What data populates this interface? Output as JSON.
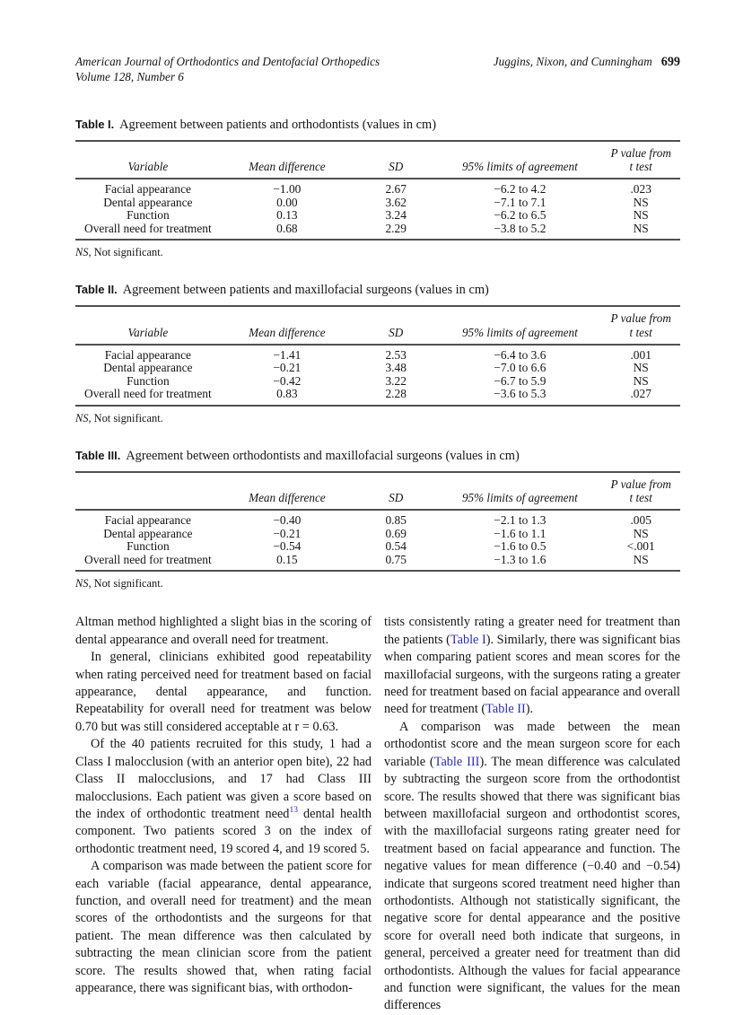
{
  "colors": {
    "link_blue": "#2b2bb0",
    "rule_gray": "#4f4f4f",
    "text_black": "#151515"
  },
  "header": {
    "journal": "American Journal of Orthodontics and Dentofacial Orthopedics",
    "volume": "Volume 128, Number 6",
    "authors": "Juggins, Nixon, and Cunningham",
    "page_number": "699"
  },
  "tables": [
    {
      "label": "Table I.",
      "caption": "Agreement between patients and orthodontists (values in cm)",
      "headers": {
        "variable": "Variable",
        "mean": "Mean difference",
        "sd": "SD",
        "limits": "95% limits of agreement",
        "p_line1": "P value from",
        "p_line2": "t test"
      },
      "rows": [
        [
          "Facial appearance",
          "−1.00",
          "2.67",
          "−6.2 to 4.2",
          ".023"
        ],
        [
          "Dental appearance",
          "0.00",
          "3.62",
          "−7.1 to 7.1",
          "NS"
        ],
        [
          "Function",
          "0.13",
          "3.24",
          "−6.2 to 6.5",
          "NS"
        ],
        [
          "Overall need for treatment",
          "0.68",
          "2.29",
          "−3.8 to 5.2",
          "NS"
        ]
      ],
      "footnote_abbr": "NS",
      "footnote_rest": ", Not significant."
    },
    {
      "label": "Table II.",
      "caption": "Agreement between patients and maxillofacial surgeons (values in cm)",
      "headers": {
        "variable": "Variable",
        "mean": "Mean difference",
        "sd": "SD",
        "limits": "95% limits of agreement",
        "p_line1": "P value from",
        "p_line2": "t test"
      },
      "rows": [
        [
          "Facial appearance",
          "−1.41",
          "2.53",
          "−6.4 to 3.6",
          ".001"
        ],
        [
          "Dental appearance",
          "−0.21",
          "3.48",
          "−7.0 to 6.6",
          "NS"
        ],
        [
          "Function",
          "−0.42",
          "3.22",
          "−6.7 to 5.9",
          "NS"
        ],
        [
          "Overall need for treatment",
          "0.83",
          "2.28",
          "−3.6 to 5.3",
          ".027"
        ]
      ],
      "footnote_abbr": "NS",
      "footnote_rest": ", Not significant."
    },
    {
      "label": "Table III.",
      "caption": "Agreement between orthodontists and maxillofacial surgeons (values in cm)",
      "headers": {
        "variable": "",
        "mean": "Mean difference",
        "sd": "SD",
        "limits": "95% limits of agreement",
        "p_line1": "P value from",
        "p_line2": "t test"
      },
      "rows": [
        [
          "Facial appearance",
          "−0.40",
          "0.85",
          "−2.1 to 1.3",
          ".005"
        ],
        [
          "Dental appearance",
          "−0.21",
          "0.69",
          "−1.6 to 1.1",
          "NS"
        ],
        [
          "Function",
          "−0.54",
          "0.54",
          "−1.6 to 0.5",
          "<.001"
        ],
        [
          "Overall need for treatment",
          "0.15",
          "0.75",
          "−1.3 to 1.6",
          "NS"
        ]
      ],
      "footnote_abbr": "NS",
      "footnote_rest": ", Not significant."
    }
  ],
  "body": {
    "left_column": [
      {
        "segments": [
          {
            "type": "text",
            "text": "Altman method highlighted a slight bias in the scoring of dental appearance and overall need for treatment."
          }
        ]
      },
      {
        "segments": [
          {
            "type": "text",
            "text": "In general, clinicians exhibited good repeatability when rating perceived need for treatment based on facial appearance, dental appearance, and function. Repeatability for overall need for treatment was below 0.70 but was still considered acceptable at r = 0.63."
          }
        ]
      },
      {
        "segments": [
          {
            "type": "text",
            "text": "Of the 40 patients recruited for this study, 1 had a Class I malocclusion (with an anterior open bite), 22 had Class II malocclusions, and 17 had Class III malocclusions. Each patient was given a score based on the index of orthodontic treatment need"
          },
          {
            "type": "sup",
            "text": "13"
          },
          {
            "type": "text",
            "text": " dental health component. Two patients scored 3 on the index of orthodontic treatment need, 19 scored 4, and 19 scored 5."
          }
        ]
      },
      {
        "segments": [
          {
            "type": "text",
            "text": "A comparison was made between the patient score for each variable (facial appearance, dental appearance, function, and overall need for treatment) and the mean scores of the orthodontists and the surgeons for that patient. The mean difference was then calculated by subtracting the mean clinician score from the patient score. The results showed that, when rating facial appearance, there was significant bias, with orthodon-"
          }
        ]
      }
    ],
    "right_column": [
      {
        "segments": [
          {
            "type": "text",
            "text": "tists consistently rating a greater need for treatment than the patients ("
          },
          {
            "type": "link",
            "text": "Table I"
          },
          {
            "type": "text",
            "text": "). Similarly, there was significant bias when comparing patient scores and mean scores for the maxillofacial surgeons, with the surgeons rating a greater need for treatment based on facial appearance and overall need for treatment ("
          },
          {
            "type": "link",
            "text": "Table II"
          },
          {
            "type": "text",
            "text": ")."
          }
        ]
      },
      {
        "segments": [
          {
            "type": "text",
            "text": "A comparison was made between the mean orthodontist score and the mean surgeon score for each variable ("
          },
          {
            "type": "link",
            "text": "Table III"
          },
          {
            "type": "text",
            "text": "). The mean difference was calculated by subtracting the surgeon score from the orthodontist score. The results showed that there was significant bias between maxillofacial surgeon and orthodontist scores, with the maxillofacial surgeons rating greater need for treatment based on facial appearance and function. The negative values for mean difference (−0.40 and −0.54) indicate that surgeons scored treatment need higher than orthodontists. Although not statistically significant, the negative score for dental appearance and the positive score for overall need both indicate that surgeons, in general, perceived a greater need for treatment than did orthodontists. Although the values for facial appearance and function were significant, the values for the mean differences"
          }
        ]
      }
    ]
  }
}
